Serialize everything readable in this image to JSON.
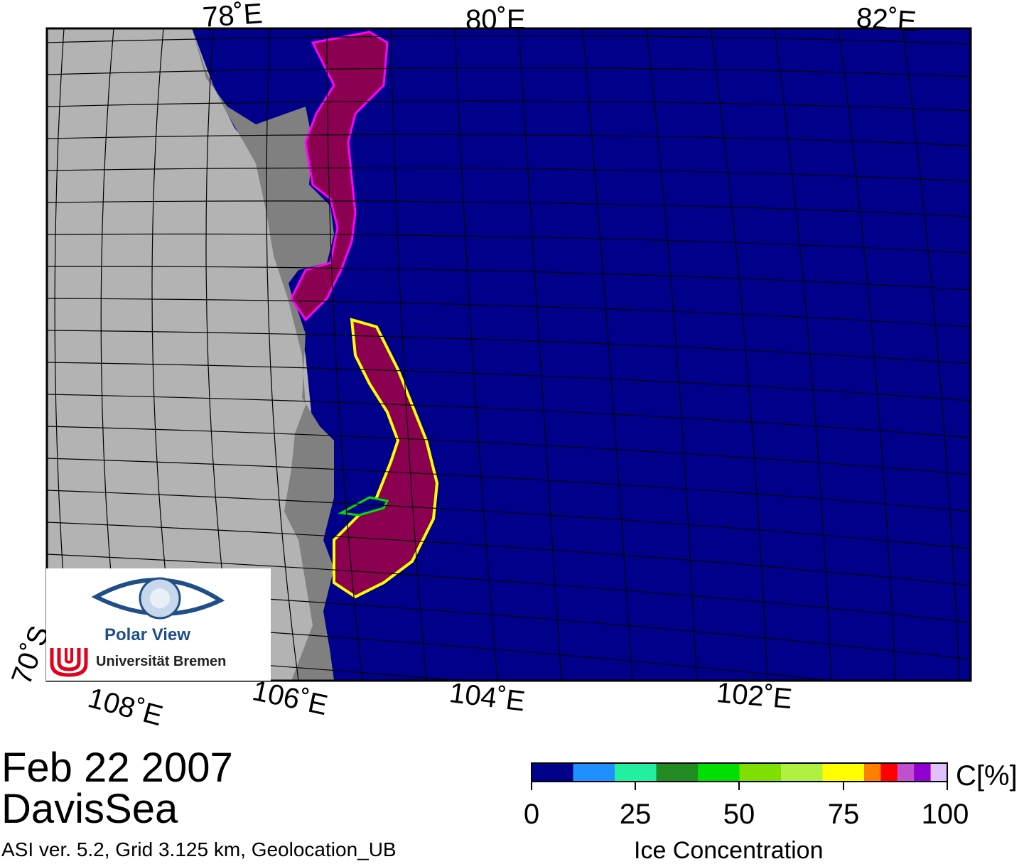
{
  "map": {
    "top_lon_labels": [
      "78˚E",
      "80˚E",
      "82˚E"
    ],
    "bottom_lon_labels": [
      "108˚E",
      "106˚E",
      "104˚E",
      "102˚E"
    ],
    "lat_label": "70˚S",
    "colors": {
      "ocean": "#00008b",
      "land": "#b3b3b3",
      "ice_shelf": "#808080",
      "ice_high": "#8b0050"
    }
  },
  "info": {
    "date": "Feb 22 2007",
    "region": "DavisSea",
    "footer": "ASI ver. 5.2,  Grid 3.125 km, Geolocation_UB"
  },
  "logo": {
    "title": "Polar View",
    "subtitle": "Universität Bremen"
  },
  "colorbar": {
    "unit": "C[%]",
    "title": "Ice Concentration",
    "ticks": [
      "0",
      "25",
      "50",
      "75",
      "100"
    ],
    "colors": [
      "#00008b",
      "#1e90ff",
      "#20f0a0",
      "#228b22",
      "#00e000",
      "#7fe000",
      "#b0f040",
      "#ffff00",
      "#ff8000",
      "#ff0000",
      "#c050d0",
      "#9000d0",
      "#e0c0ff"
    ]
  }
}
